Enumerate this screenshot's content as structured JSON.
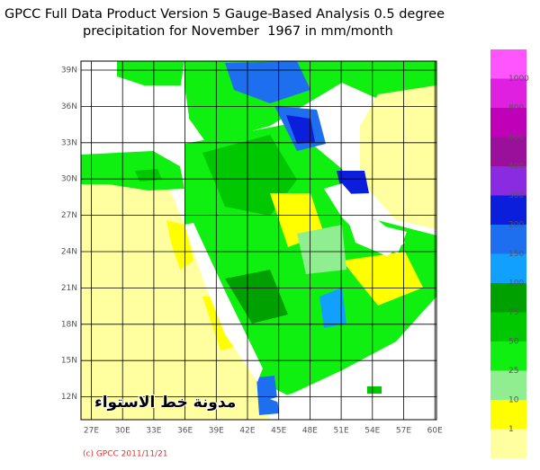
{
  "header": {
    "title_line1": "GPCC Full Data Product Version 5 Gauge-Based Analysis 0.5 degree",
    "title_line2": "precipitation for November  1967 in mm/month"
  },
  "map": {
    "lat_labels": [
      "39N",
      "36N",
      "33N",
      "30N",
      "27N",
      "24N",
      "21N",
      "18N",
      "15N",
      "12N"
    ],
    "lon_labels": [
      "27E",
      "30E",
      "33E",
      "36E",
      "39E",
      "42E",
      "45E",
      "48E",
      "51E",
      "54E",
      "57E",
      "60E"
    ],
    "watermark": "مدونة خط الاستواء",
    "credit": "(c) GPCC 2011/11/21"
  },
  "legend": {
    "colors": [
      "#ff55ff",
      "#e020e0",
      "#c000b8",
      "#9a109a",
      "#8a2be2",
      "#0a1edc",
      "#1e6ef0",
      "#12a0ff",
      "#00a000",
      "#00c800",
      "#10f010",
      "#90ee90",
      "#ffff00",
      "#ffffa0"
    ],
    "labels": [
      "1000",
      "800",
      "600",
      "400",
      "300",
      "200",
      "150",
      "100",
      "75",
      "50",
      "25",
      "10",
      "1"
    ]
  }
}
